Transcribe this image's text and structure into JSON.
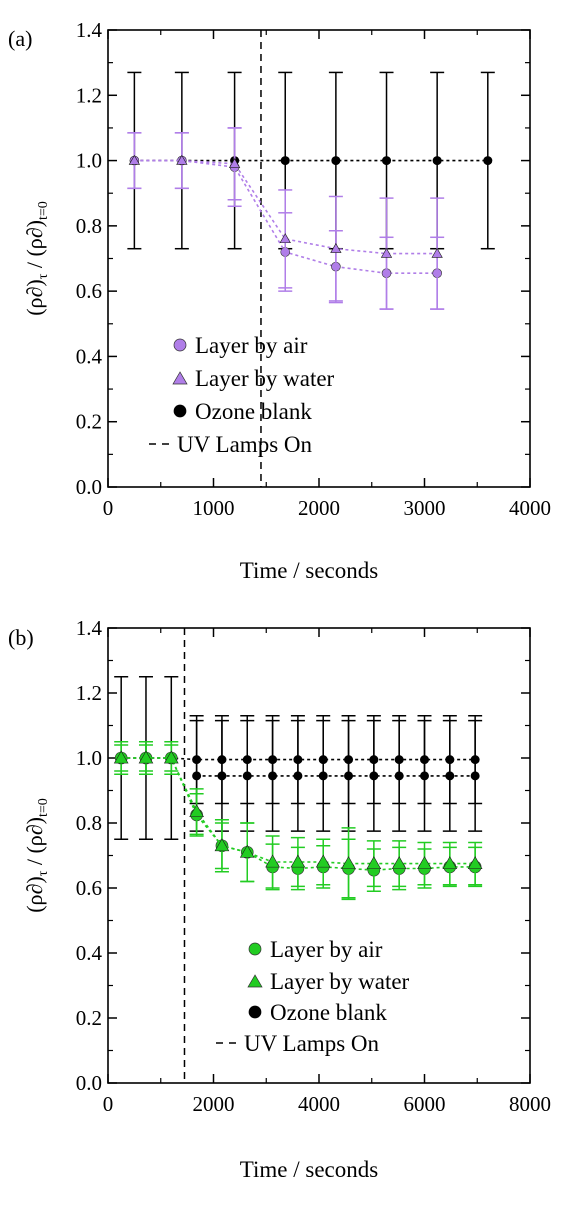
{
  "figure": {
    "panel_a_label": "(a)",
    "panel_b_label": "(b)"
  },
  "chart_data": [
    {
      "type": "scatter",
      "title": "",
      "panel_label": "(a)",
      "xlabel": "Time / seconds",
      "ylabel": "(ρ∂)τ / (ρ∂)t=0",
      "ylabel_main": "(ρ∂)",
      "ylabel_sub1": "τ",
      "ylabel_div": " / (ρ∂)",
      "ylabel_sub2": "t=0",
      "xlim": [
        0,
        4000
      ],
      "ylim": [
        0.0,
        1.4
      ],
      "xticks": [
        "0",
        "1000",
        "2000",
        "3000",
        "4000"
      ],
      "yticks": [
        "0.0",
        "0.2",
        "0.4",
        "0.6",
        "0.8",
        "1.0",
        "1.2",
        "1.4"
      ],
      "grid": false,
      "legend_position": "bottom-center",
      "uv_lamps_on_x": 1450,
      "series": [
        {
          "name": "Layer by air",
          "marker": "circle",
          "color": "#b07ee8",
          "line": "dotted",
          "x": [
            250,
            700,
            1200,
            1680,
            2160,
            2640,
            3120
          ],
          "y": [
            1.0,
            1.0,
            0.98,
            0.72,
            0.675,
            0.655,
            0.655
          ],
          "err": [
            0.085,
            0.085,
            0.12,
            0.12,
            0.11,
            0.11,
            0.11
          ]
        },
        {
          "name": "Layer by water",
          "marker": "triangle",
          "color": "#b07ee8",
          "line": "dotted",
          "x": [
            250,
            700,
            1200,
            1680,
            2160,
            2640,
            3120
          ],
          "y": [
            1.0,
            1.0,
            0.99,
            0.76,
            0.73,
            0.715,
            0.715
          ],
          "err": [
            0.085,
            0.085,
            0.11,
            0.15,
            0.16,
            0.17,
            0.17
          ]
        },
        {
          "name": "Ozone blank",
          "marker": "circle",
          "color": "#000000",
          "line": "dotted",
          "x": [
            250,
            700,
            1200,
            1680,
            2160,
            2640,
            3120,
            3600
          ],
          "y": [
            1.0,
            1.0,
            1.0,
            1.0,
            1.0,
            1.0,
            1.0,
            1.0
          ],
          "err": [
            0.27,
            0.27,
            0.27,
            0.27,
            0.27,
            0.27,
            0.27,
            0.27
          ]
        },
        {
          "name": "UV Lamps On",
          "marker": "none",
          "color": "#000000",
          "line": "dashed"
        }
      ]
    },
    {
      "type": "scatter",
      "title": "",
      "panel_label": "(b)",
      "xlabel": "Time / seconds",
      "ylabel": "(ρ∂)τ / (ρ∂)t=0",
      "ylabel_main": "(ρ∂)",
      "ylabel_sub1": "τ",
      "ylabel_div": " / (ρ∂)",
      "ylabel_sub2": "t=0",
      "xlim": [
        0,
        8000
      ],
      "ylim": [
        0.0,
        1.4
      ],
      "xticks": [
        "0",
        "2000",
        "4000",
        "6000",
        "8000"
      ],
      "yticks": [
        "0.0",
        "0.2",
        "0.4",
        "0.6",
        "0.8",
        "1.0",
        "1.2",
        "1.4"
      ],
      "grid": false,
      "legend_position": "bottom-center",
      "uv_lamps_on_x": 1450,
      "series": [
        {
          "name": "Layer by air",
          "marker": "circle",
          "color": "#22cc22",
          "line": "dotted",
          "x": [
            250,
            720,
            1200,
            1680,
            2160,
            2640,
            3120,
            3600,
            4080,
            4560,
            5040,
            5520,
            6000,
            6480,
            6960
          ],
          "y": [
            1.0,
            1.0,
            1.0,
            0.825,
            0.73,
            0.71,
            0.665,
            0.66,
            0.665,
            0.66,
            0.655,
            0.66,
            0.66,
            0.665,
            0.665
          ],
          "err": [
            0.04,
            0.04,
            0.04,
            0.065,
            0.07,
            0.09,
            0.07,
            0.065,
            0.065,
            0.09,
            0.065,
            0.065,
            0.06,
            0.06,
            0.06
          ]
        },
        {
          "name": "Layer by water",
          "marker": "triangle",
          "color": "#22cc22",
          "line": "dotted",
          "x": [
            250,
            720,
            1200,
            1680,
            2160,
            2640,
            3120,
            3600,
            4080,
            4560,
            5040,
            5520,
            6000,
            6480,
            6960
          ],
          "y": [
            1.0,
            1.0,
            1.0,
            0.835,
            0.73,
            0.71,
            0.68,
            0.68,
            0.68,
            0.675,
            0.675,
            0.675,
            0.675,
            0.675,
            0.675
          ],
          "err": [
            0.05,
            0.05,
            0.05,
            0.07,
            0.08,
            0.09,
            0.08,
            0.075,
            0.07,
            0.11,
            0.07,
            0.07,
            0.065,
            0.065,
            0.065
          ]
        },
        {
          "name": "Ozone blank",
          "marker": "circle",
          "color": "#000000",
          "line": "dotted",
          "x": [
            250,
            720,
            1200,
            1680,
            2160,
            2640,
            3120,
            3600,
            4080,
            4560,
            5040,
            5520,
            6000,
            6480,
            6960
          ],
          "y": [
            1.0,
            1.0,
            1.0,
            0.995,
            0.995,
            0.995,
            0.995,
            0.995,
            0.995,
            0.995,
            0.995,
            0.995,
            0.995,
            0.995,
            0.995
          ],
          "err": [
            0.25,
            0.25,
            0.25,
            0.135,
            0.135,
            0.135,
            0.135,
            0.135,
            0.135,
            0.135,
            0.135,
            0.135,
            0.135,
            0.135,
            0.135
          ]
        },
        {
          "name": "",
          "marker": "circle",
          "color": "#000000",
          "line": "dotted",
          "x": [
            1680,
            2160,
            2640,
            3120,
            3600,
            4080,
            4560,
            5040,
            5520,
            6000,
            6480,
            6960
          ],
          "y": [
            0.945,
            0.945,
            0.945,
            0.945,
            0.945,
            0.945,
            0.945,
            0.945,
            0.945,
            0.945,
            0.945,
            0.945
          ],
          "err": [
            0.17,
            0.17,
            0.17,
            0.17,
            0.17,
            0.17,
            0.17,
            0.17,
            0.17,
            0.17,
            0.17,
            0.17
          ]
        },
        {
          "name": "UV Lamps On",
          "marker": "none",
          "color": "#000000",
          "line": "dashed"
        }
      ]
    }
  ]
}
